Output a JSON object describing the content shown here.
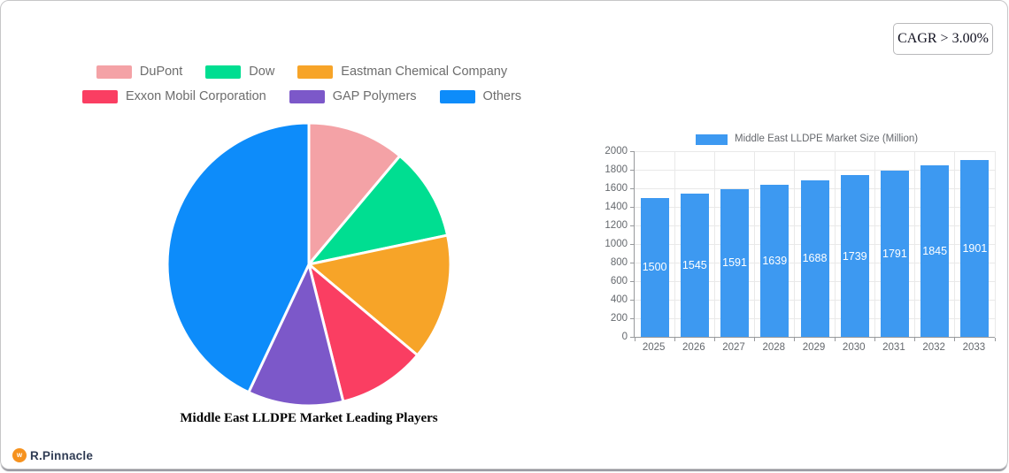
{
  "cagr": {
    "label": "CAGR > 3.00%"
  },
  "brand": {
    "name": "R.Pinnacle",
    "icon": "logo-mark-icon",
    "icon_glyph": "w",
    "icon_color": "#F6921E"
  },
  "chart_data": [
    {
      "type": "pie",
      "title": "Middle East LLDPE Market Leading Players",
      "legend_position": "top",
      "labels": [
        "DuPont",
        "Dow",
        "Eastman Chemical Company",
        "Exxon Mobil Corporation",
        "GAP Polymers",
        "Others"
      ],
      "values_percent": [
        11.1,
        10.6,
        14.4,
        10.0,
        10.9,
        43.0
      ],
      "colors": [
        "#F4A2A6",
        "#00DE91",
        "#F7A428",
        "#FA3E62",
        "#7C58C9",
        "#0D8CFA"
      ],
      "start_angle_deg": -90,
      "slice_border_color": "#ffffff"
    },
    {
      "type": "bar",
      "legend_label": "Middle East LLDPE Market Size (Million)",
      "categories": [
        "2025",
        "2026",
        "2027",
        "2028",
        "2029",
        "2030",
        "2031",
        "2032",
        "2033"
      ],
      "values": [
        1500,
        1545,
        1591,
        1639,
        1688,
        1739,
        1791,
        1845,
        1901
      ],
      "bar_color": "#3D99F1",
      "value_label_color": "#ffffff",
      "ylim": [
        0,
        2000
      ],
      "yticks": [
        0,
        200,
        400,
        600,
        800,
        1000,
        1200,
        1400,
        1600,
        1800,
        2000
      ],
      "grid": true,
      "legend_position": "top"
    }
  ]
}
